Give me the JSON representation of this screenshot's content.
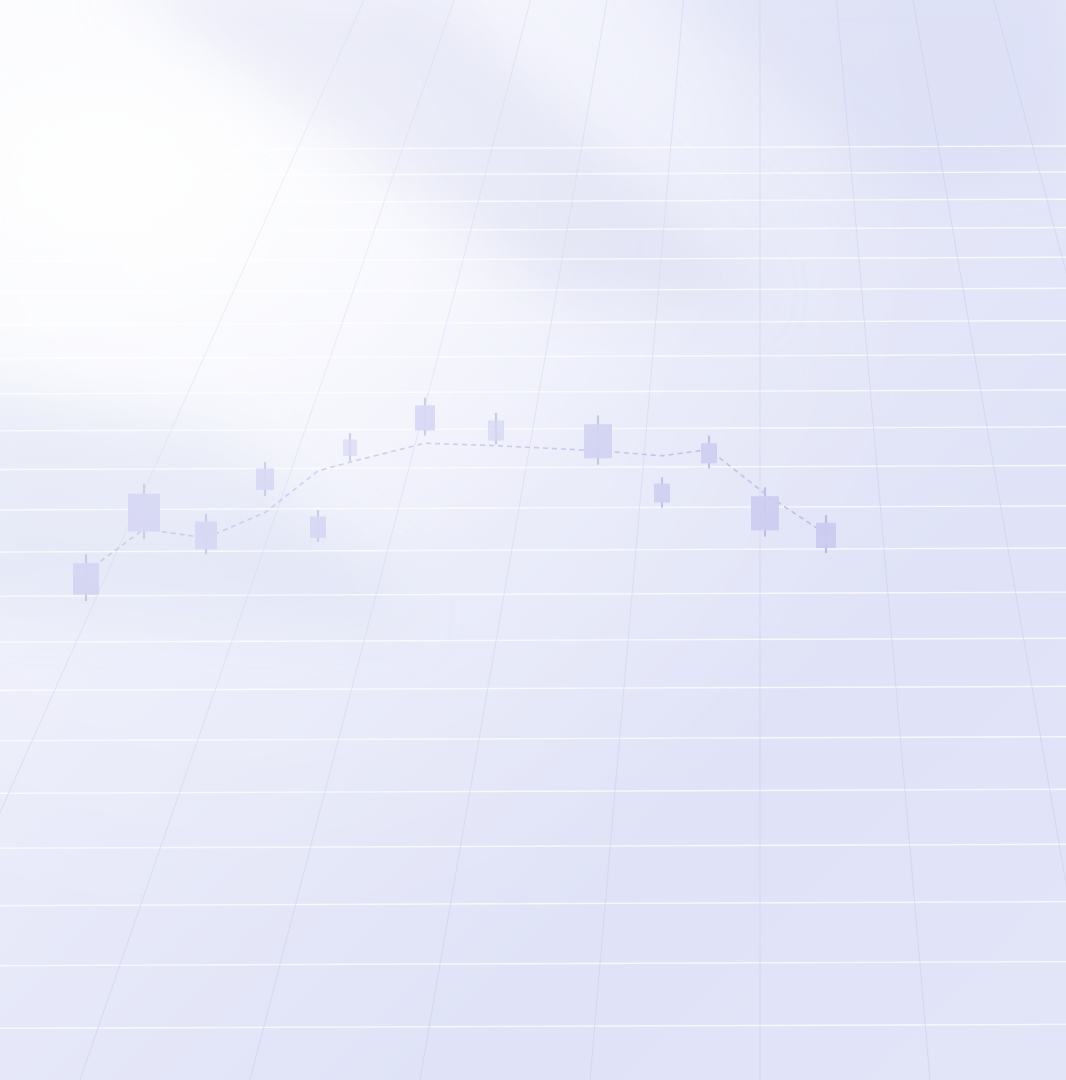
{
  "scene": {
    "subject": "abstract-financial-background",
    "palette": {
      "base": "#e6e8f8",
      "highlight": "#ffffff",
      "grid_line": "#ffffff",
      "grid_shadow": "#c9cdee",
      "candle_fill": "#c8c9ef",
      "candle_wick": "#b9badf",
      "trend_line": "#b3b6e4",
      "shadow_band": "#c5cbe8"
    }
  },
  "chart_data": {
    "type": "candlestick",
    "candles": [
      {
        "open": 20,
        "close": 45,
        "high": 52,
        "low": 15
      },
      {
        "open": 70,
        "close": 100,
        "high": 108,
        "low": 64
      },
      {
        "open": 78,
        "close": 56,
        "high": 84,
        "low": 52
      },
      {
        "open": 103,
        "close": 120,
        "high": 125,
        "low": 98
      },
      {
        "open": 82,
        "close": 65,
        "high": 87,
        "low": 62
      },
      {
        "open": 130,
        "close": 143,
        "high": 148,
        "low": 126
      },
      {
        "open": 150,
        "close": 170,
        "high": 176,
        "low": 146
      },
      {
        "open": 158,
        "close": 142,
        "high": 164,
        "low": 139
      },
      {
        "open": 155,
        "close": 128,
        "high": 162,
        "low": 123
      },
      {
        "open": 93,
        "close": 108,
        "high": 113,
        "low": 89
      },
      {
        "open": 124,
        "close": 140,
        "high": 146,
        "low": 120
      },
      {
        "open": 71,
        "close": 98,
        "high": 105,
        "low": 66
      },
      {
        "open": 77,
        "close": 57,
        "high": 83,
        "low": 53
      }
    ],
    "trend": [
      38,
      72,
      65,
      85,
      118,
      125,
      140,
      138,
      134,
      130,
      135,
      100,
      68
    ],
    "ylim": [
      0,
      190
    ],
    "grid": true
  }
}
